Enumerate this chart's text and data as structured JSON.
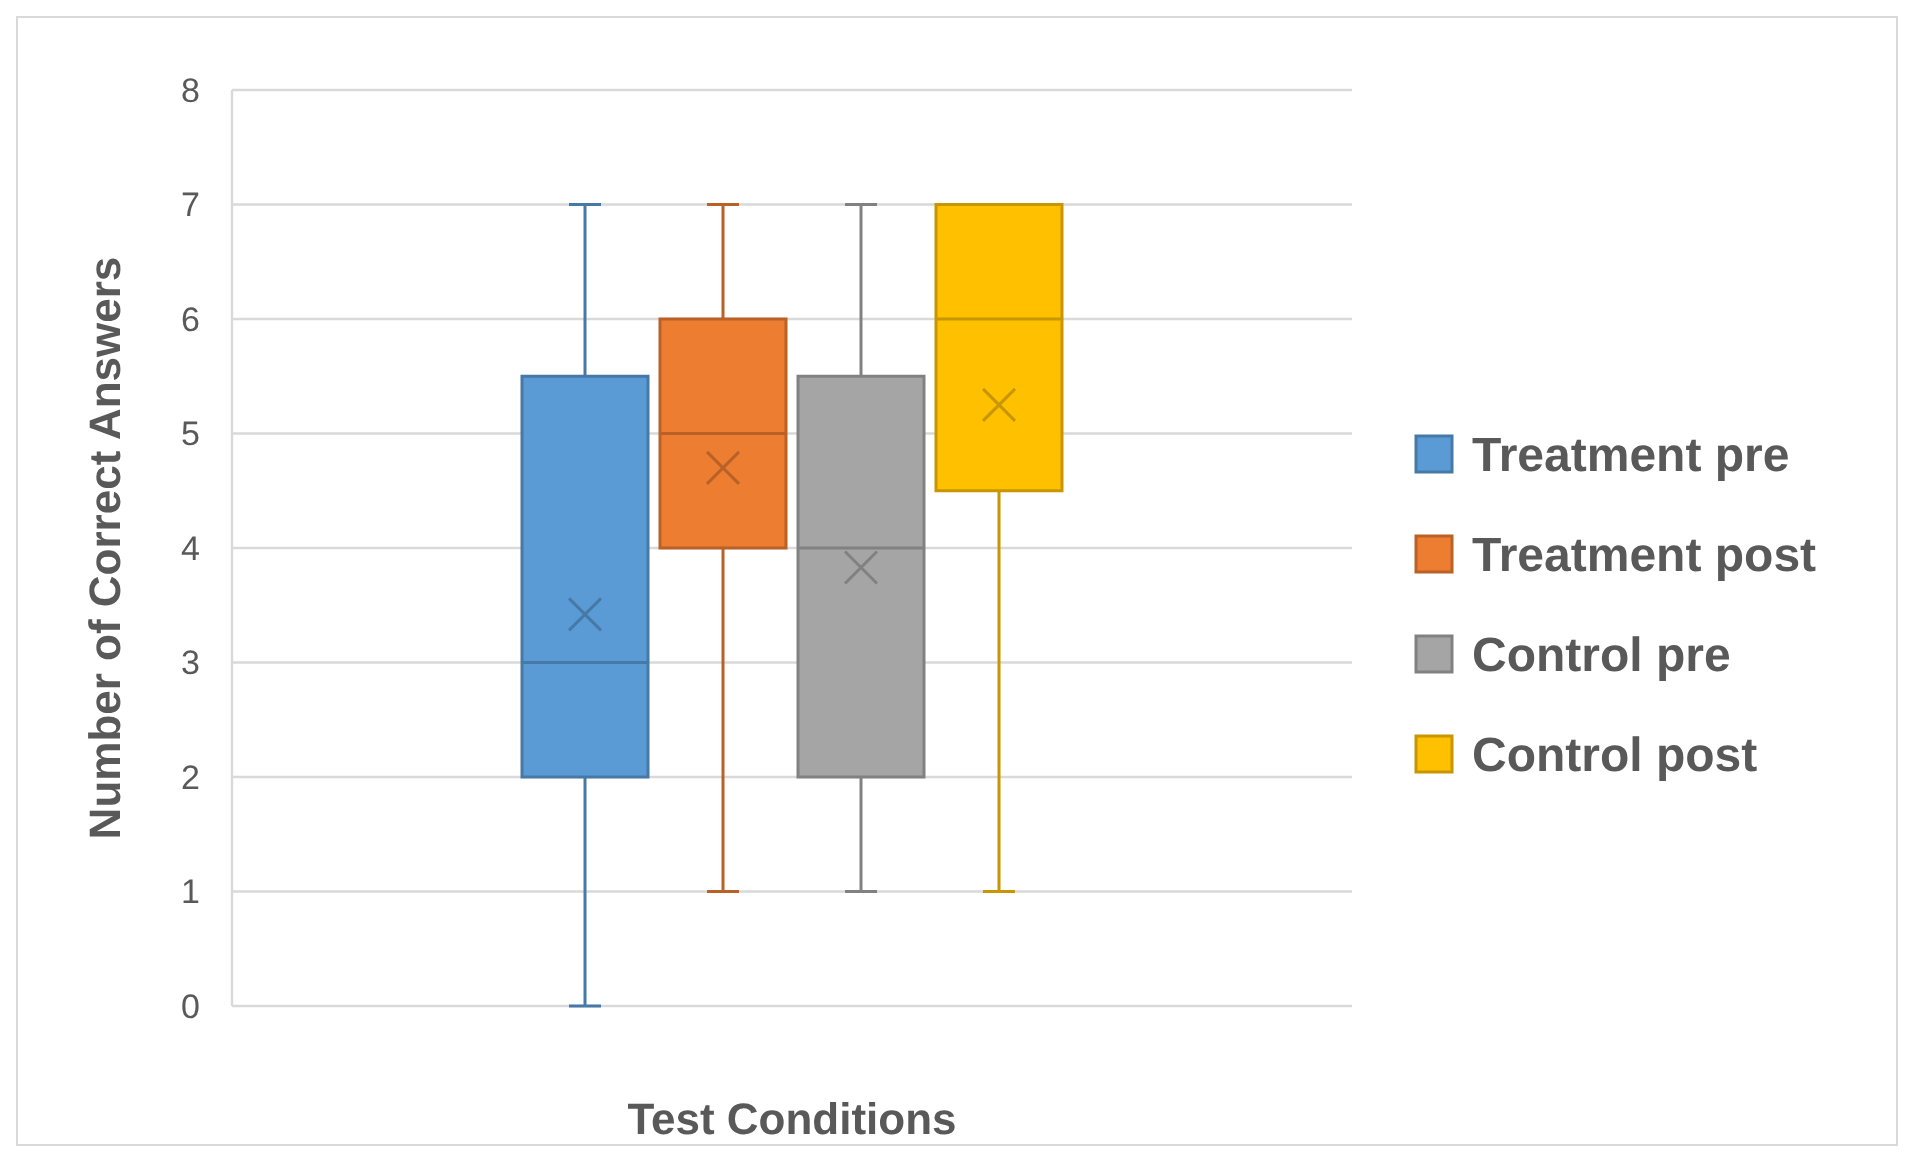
{
  "chart_data": {
    "type": "box",
    "xlabel": "Test Conditions",
    "ylabel": "Number of Correct Answers",
    "categories": [
      null
    ],
    "ylim": [
      0,
      8
    ],
    "yticks": [
      0,
      1,
      2,
      3,
      4,
      5,
      6,
      7,
      8
    ],
    "grid": "y",
    "legend": "right",
    "marker": "cross",
    "series": [
      {
        "name": "Treatment pre",
        "color": "#5b9bd5",
        "boxes": [
          {
            "low": 0,
            "q1": 2,
            "median": 3,
            "q3": 5.5,
            "high": 7,
            "mean": 3.42
          }
        ]
      },
      {
        "name": "Treatment post",
        "color": "#ed7d31",
        "boxes": [
          {
            "low": 1,
            "q1": 4,
            "median": 5,
            "q3": 6,
            "high": 7,
            "mean": 4.7
          }
        ]
      },
      {
        "name": "Control pre",
        "color": "#a5a5a5",
        "boxes": [
          {
            "low": 1,
            "q1": 2,
            "median": 4,
            "q3": 5.5,
            "high": 7,
            "mean": 3.83
          }
        ]
      },
      {
        "name": "Control post",
        "color": "#ffc000",
        "boxes": [
          {
            "low": 1,
            "q1": 4.5,
            "median": 6,
            "q3": 7,
            "high": 7,
            "mean": 5.25
          }
        ]
      }
    ]
  }
}
